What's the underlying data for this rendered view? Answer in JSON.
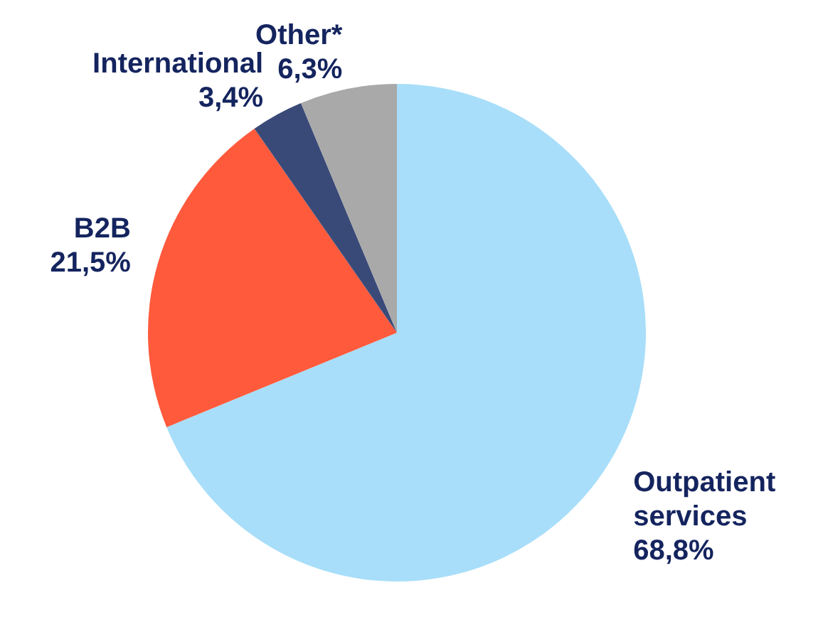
{
  "chart_data": {
    "type": "pie",
    "categories": [
      "Outpatient services",
      "B2B",
      "International",
      "Other*"
    ],
    "values": [
      68.8,
      21.5,
      3.4,
      6.3
    ],
    "colors": [
      "#a8def9",
      "#ff5a3c",
      "#3a4a78",
      "#a9a9a9"
    ],
    "value_labels": [
      "68,8%",
      "21,5%",
      "3,4%",
      "6,3%"
    ]
  }
}
